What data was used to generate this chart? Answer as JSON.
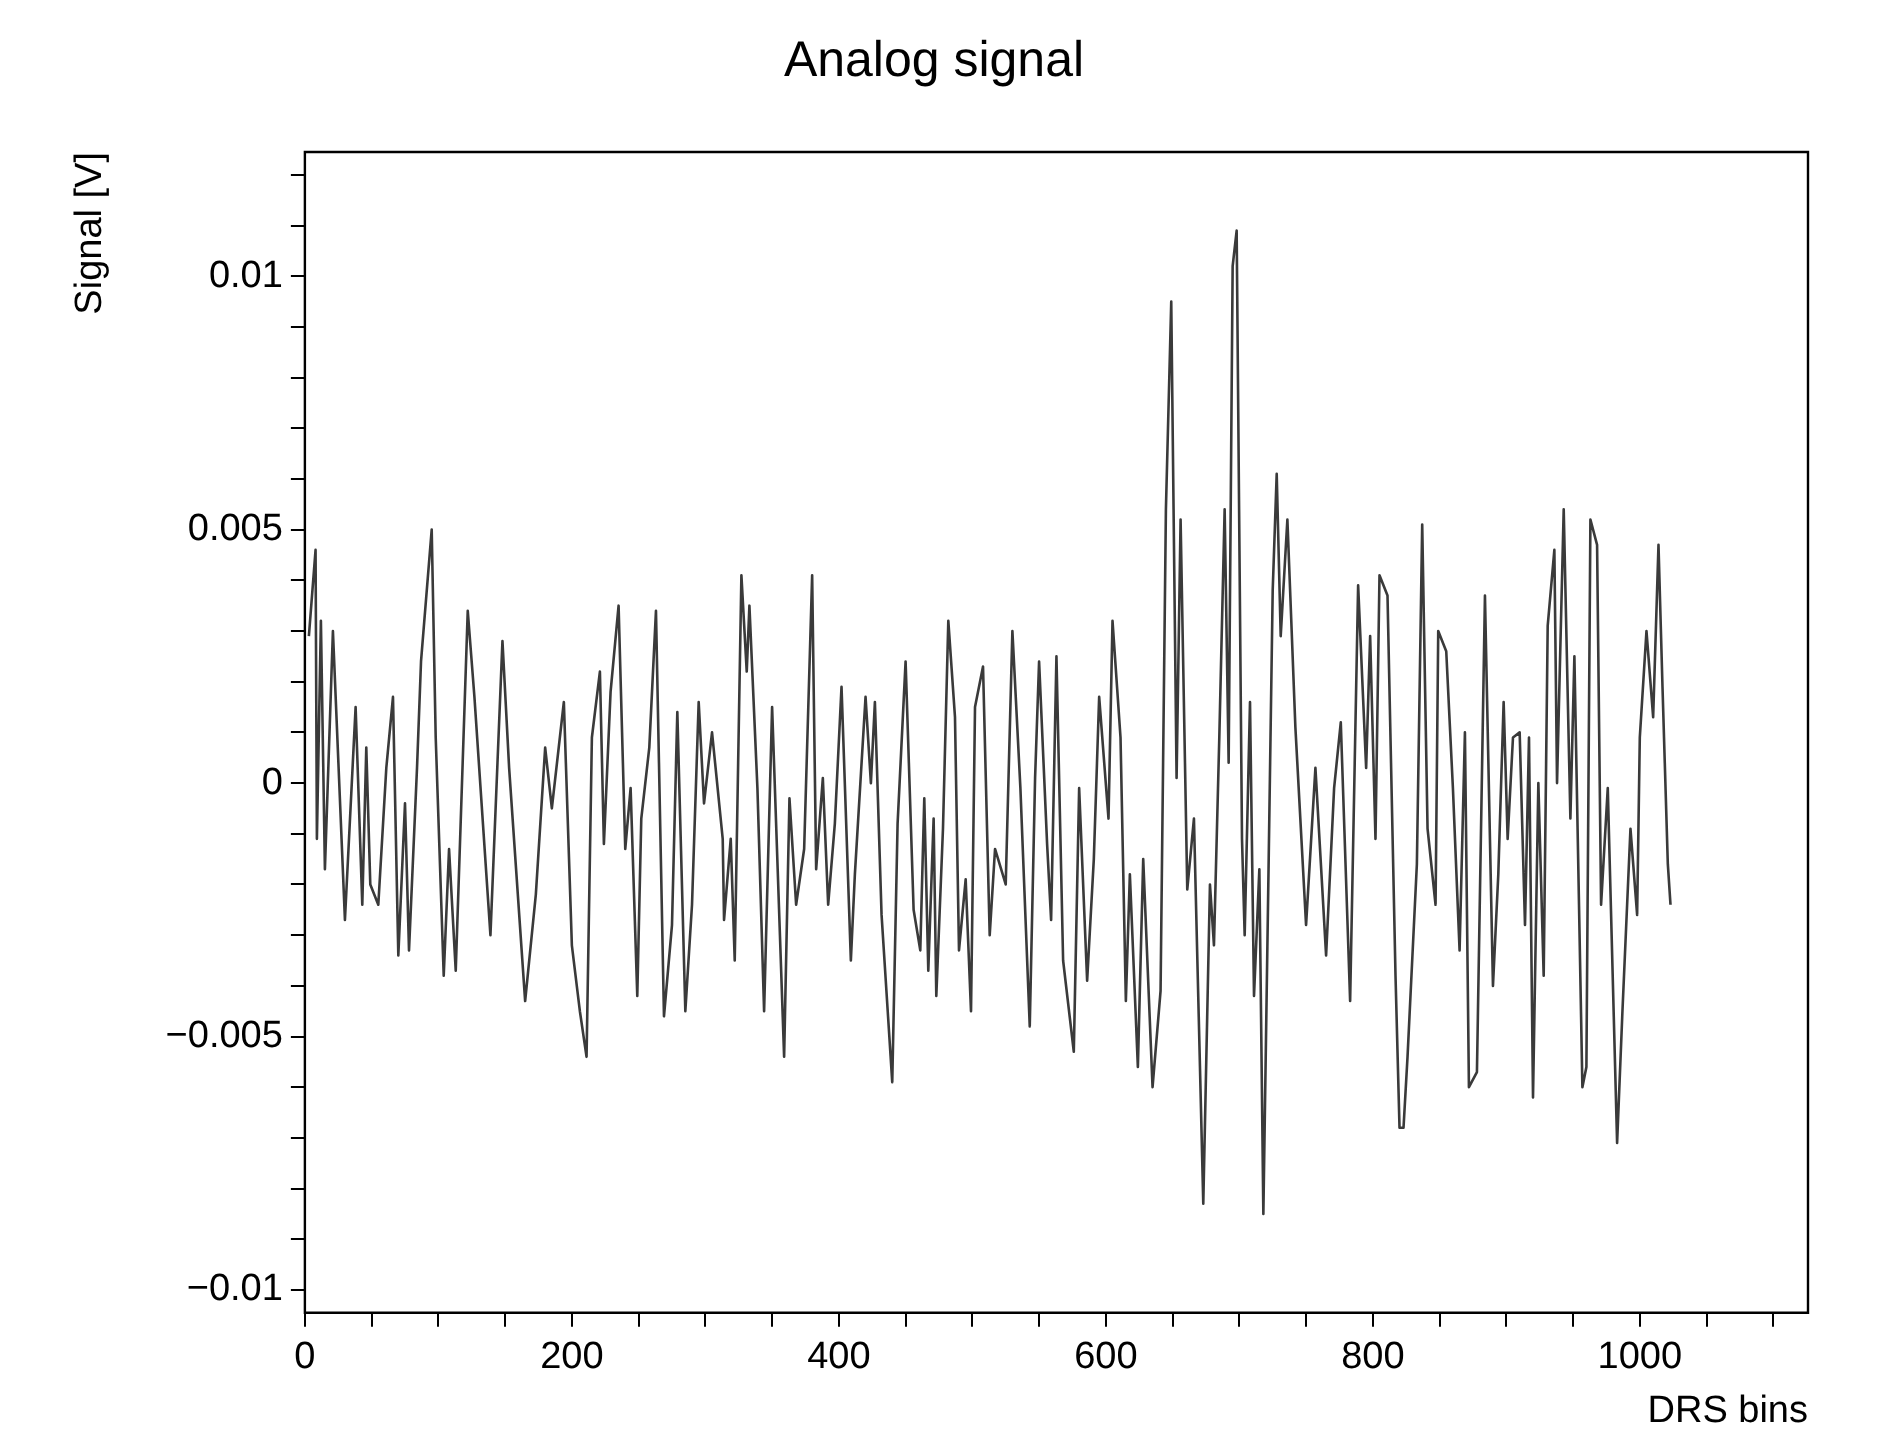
{
  "chart_data": {
    "type": "line",
    "title": "Analog signal",
    "xlabel": "DRS bins",
    "ylabel": "Signal [V]",
    "x": [
      3,
      8,
      9,
      12,
      15,
      21,
      30,
      38,
      43,
      46,
      49,
      55,
      61,
      66,
      70,
      75,
      78,
      84,
      87,
      95,
      98,
      104,
      108,
      113,
      122,
      127,
      139,
      148,
      153,
      165,
      173,
      180,
      185,
      194,
      200,
      206,
      211,
      215,
      221,
      224,
      229,
      235,
      240,
      244,
      249,
      252,
      258,
      263,
      269,
      275,
      279,
      285,
      290,
      295,
      299,
      305,
      313,
      314,
      319,
      322,
      327,
      331,
      333,
      339,
      344,
      350,
      359,
      363,
      368,
      374,
      380,
      383,
      388,
      392,
      397,
      402,
      409,
      412,
      420,
      424,
      427,
      432,
      440,
      444,
      450,
      456,
      461,
      464,
      467,
      471,
      473,
      478,
      482,
      487,
      490,
      495,
      499,
      502,
      508,
      513,
      517,
      525,
      530,
      536,
      543,
      547,
      550,
      556,
      559,
      563,
      568,
      576,
      580,
      586,
      591,
      595,
      602,
      605,
      611,
      615,
      618,
      624,
      628,
      635,
      641,
      645,
      649,
      653,
      656,
      661,
      666,
      673,
      678,
      681,
      685,
      689,
      692,
      695,
      698,
      702,
      704,
      708,
      711,
      715,
      718,
      722,
      725,
      728,
      731,
      736,
      742,
      750,
      757,
      765,
      771,
      776,
      783,
      789,
      795,
      798,
      802,
      805,
      811,
      817,
      820,
      823,
      826,
      833,
      837,
      841,
      847,
      849,
      855,
      860,
      865,
      869,
      872,
      878,
      884,
      890,
      894,
      898,
      901,
      905,
      910,
      914,
      917,
      920,
      924,
      928,
      931,
      936,
      938,
      943,
      948,
      951,
      957,
      960,
      963,
      968,
      971,
      976,
      983,
      987,
      993,
      998,
      1000,
      1005,
      1010,
      1014,
      1017,
      1021,
      1023
    ],
    "series": [
      {
        "color": "#3a3a3a",
        "values": [
          0.0029,
          0.0046,
          -0.0011,
          0.0032,
          -0.0017,
          0.003,
          -0.0027,
          0.0015,
          -0.0024,
          0.0007,
          -0.002,
          -0.0024,
          0.0003,
          0.0017,
          -0.0034,
          -0.0004,
          -0.0033,
          0.0003,
          0.0024,
          0.005,
          0.0009,
          -0.0038,
          -0.0013,
          -0.0037,
          0.0034,
          0.0017,
          -0.003,
          0.0028,
          0.0003,
          -0.0043,
          -0.0022,
          0.0007,
          -0.0005,
          0.0016,
          -0.0032,
          -0.0045,
          -0.0054,
          0.0009,
          0.0022,
          -0.0012,
          0.0018,
          0.0035,
          -0.0013,
          -0.0001,
          -0.0042,
          -0.0007,
          0.0007,
          0.0034,
          -0.0046,
          -0.0028,
          0.0014,
          -0.0045,
          -0.0024,
          0.0016,
          -0.0004,
          0.001,
          -0.0011,
          -0.0027,
          -0.0011,
          -0.0035,
          0.0041,
          0.0022,
          0.0035,
          -0.0001,
          -0.0045,
          0.0015,
          -0.0054,
          -0.0003,
          -0.0024,
          -0.0013,
          0.0041,
          -0.0017,
          0.0001,
          -0.0024,
          -0.0008,
          0.0019,
          -0.0035,
          -0.0018,
          0.0017,
          0.0,
          0.0016,
          -0.0026,
          -0.0059,
          -0.0008,
          0.0024,
          -0.0025,
          -0.0033,
          -0.0003,
          -0.0037,
          -0.0007,
          -0.0042,
          -0.0009,
          0.0032,
          0.0013,
          -0.0033,
          -0.0019,
          -0.0045,
          0.0015,
          0.0023,
          -0.003,
          -0.0013,
          -0.002,
          0.003,
          -0.0001,
          -0.0048,
          0.0001,
          0.0024,
          -0.0012,
          -0.0027,
          0.0025,
          -0.0035,
          -0.0053,
          -0.0001,
          -0.0039,
          -0.0015,
          0.0017,
          -0.0007,
          0.0032,
          0.0009,
          -0.0043,
          -0.0018,
          -0.0056,
          -0.0015,
          -0.006,
          -0.0041,
          0.0054,
          0.0095,
          0.0001,
          0.0052,
          -0.0021,
          -0.0007,
          -0.0083,
          -0.002,
          -0.0032,
          0.0009,
          0.0054,
          0.0004,
          0.0102,
          0.0109,
          -0.0011,
          -0.003,
          0.0016,
          -0.0042,
          -0.0017,
          -0.0085,
          -0.0015,
          0.0038,
          0.0061,
          0.0029,
          0.0052,
          0.0011,
          -0.0028,
          0.0003,
          -0.0034,
          -0.0001,
          0.0012,
          -0.0043,
          0.0039,
          0.0003,
          0.0029,
          -0.0011,
          0.0041,
          0.0037,
          -0.0038,
          -0.0068,
          -0.0068,
          -0.0054,
          -0.0016,
          0.0051,
          -0.0009,
          -0.0024,
          0.003,
          0.0026,
          -0.0001,
          -0.0033,
          0.001,
          -0.006,
          -0.0057,
          0.0037,
          -0.004,
          -0.0018,
          0.0016,
          -0.0011,
          0.0009,
          0.001,
          -0.0028,
          0.0009,
          -0.0062,
          0.0,
          -0.0038,
          0.0031,
          0.0046,
          0.0,
          0.0054,
          -0.0007,
          0.0025,
          -0.006,
          -0.0056,
          0.0052,
          0.0047,
          -0.0024,
          -0.0001,
          -0.0071,
          -0.0045,
          -0.0009,
          -0.0026,
          0.0009,
          0.003,
          0.0013,
          0.0047,
          0.0019,
          -0.0016,
          -0.0024
        ]
      }
    ],
    "xlim": [
      0,
      1126
    ],
    "ylim": [
      -0.01045,
      0.01245
    ],
    "xticks": [
      0,
      {
        "value": 50,
        "label": null
      },
      {
        "value": 100,
        "label": null
      },
      {
        "value": 150,
        "label": null
      },
      200,
      {
        "value": 250,
        "label": null
      },
      {
        "value": 300,
        "label": null
      },
      {
        "value": 350,
        "label": null
      },
      400,
      {
        "value": 450,
        "label": null
      },
      {
        "value": 500,
        "label": null
      },
      {
        "value": 550,
        "label": null
      },
      600,
      {
        "value": 650,
        "label": null
      },
      {
        "value": 700,
        "label": null
      },
      {
        "value": 750,
        "label": null
      },
      800,
      {
        "value": 850,
        "label": null
      },
      {
        "value": 900,
        "label": null
      },
      {
        "value": 950,
        "label": null
      },
      1000,
      {
        "value": 1050,
        "label": null
      },
      {
        "value": 1100,
        "label": null
      }
    ],
    "yticks": [
      {
        "value": -0.01,
        "label": "−0.01"
      },
      {
        "value": -0.009,
        "label": null
      },
      {
        "value": -0.008,
        "label": null
      },
      {
        "value": -0.007,
        "label": null
      },
      {
        "value": -0.006,
        "label": null
      },
      {
        "value": -0.005,
        "label": "−0.005"
      },
      {
        "value": -0.004,
        "label": null
      },
      {
        "value": -0.003,
        "label": null
      },
      {
        "value": -0.002,
        "label": null
      },
      {
        "value": -0.001,
        "label": null
      },
      0,
      {
        "value": 0.001,
        "label": null
      },
      {
        "value": 0.002,
        "label": null
      },
      {
        "value": 0.003,
        "label": null
      },
      {
        "value": 0.004,
        "label": null
      },
      0.005,
      {
        "value": 0.006,
        "label": null
      },
      {
        "value": 0.007,
        "label": null
      },
      {
        "value": 0.008,
        "label": null
      },
      {
        "value": 0.009,
        "label": null
      },
      0.01,
      {
        "value": 0.011,
        "label": null
      },
      {
        "value": 0.012,
        "label": null
      }
    ],
    "grid": false,
    "legend": false,
    "marker": "none",
    "line_style": "solid"
  }
}
